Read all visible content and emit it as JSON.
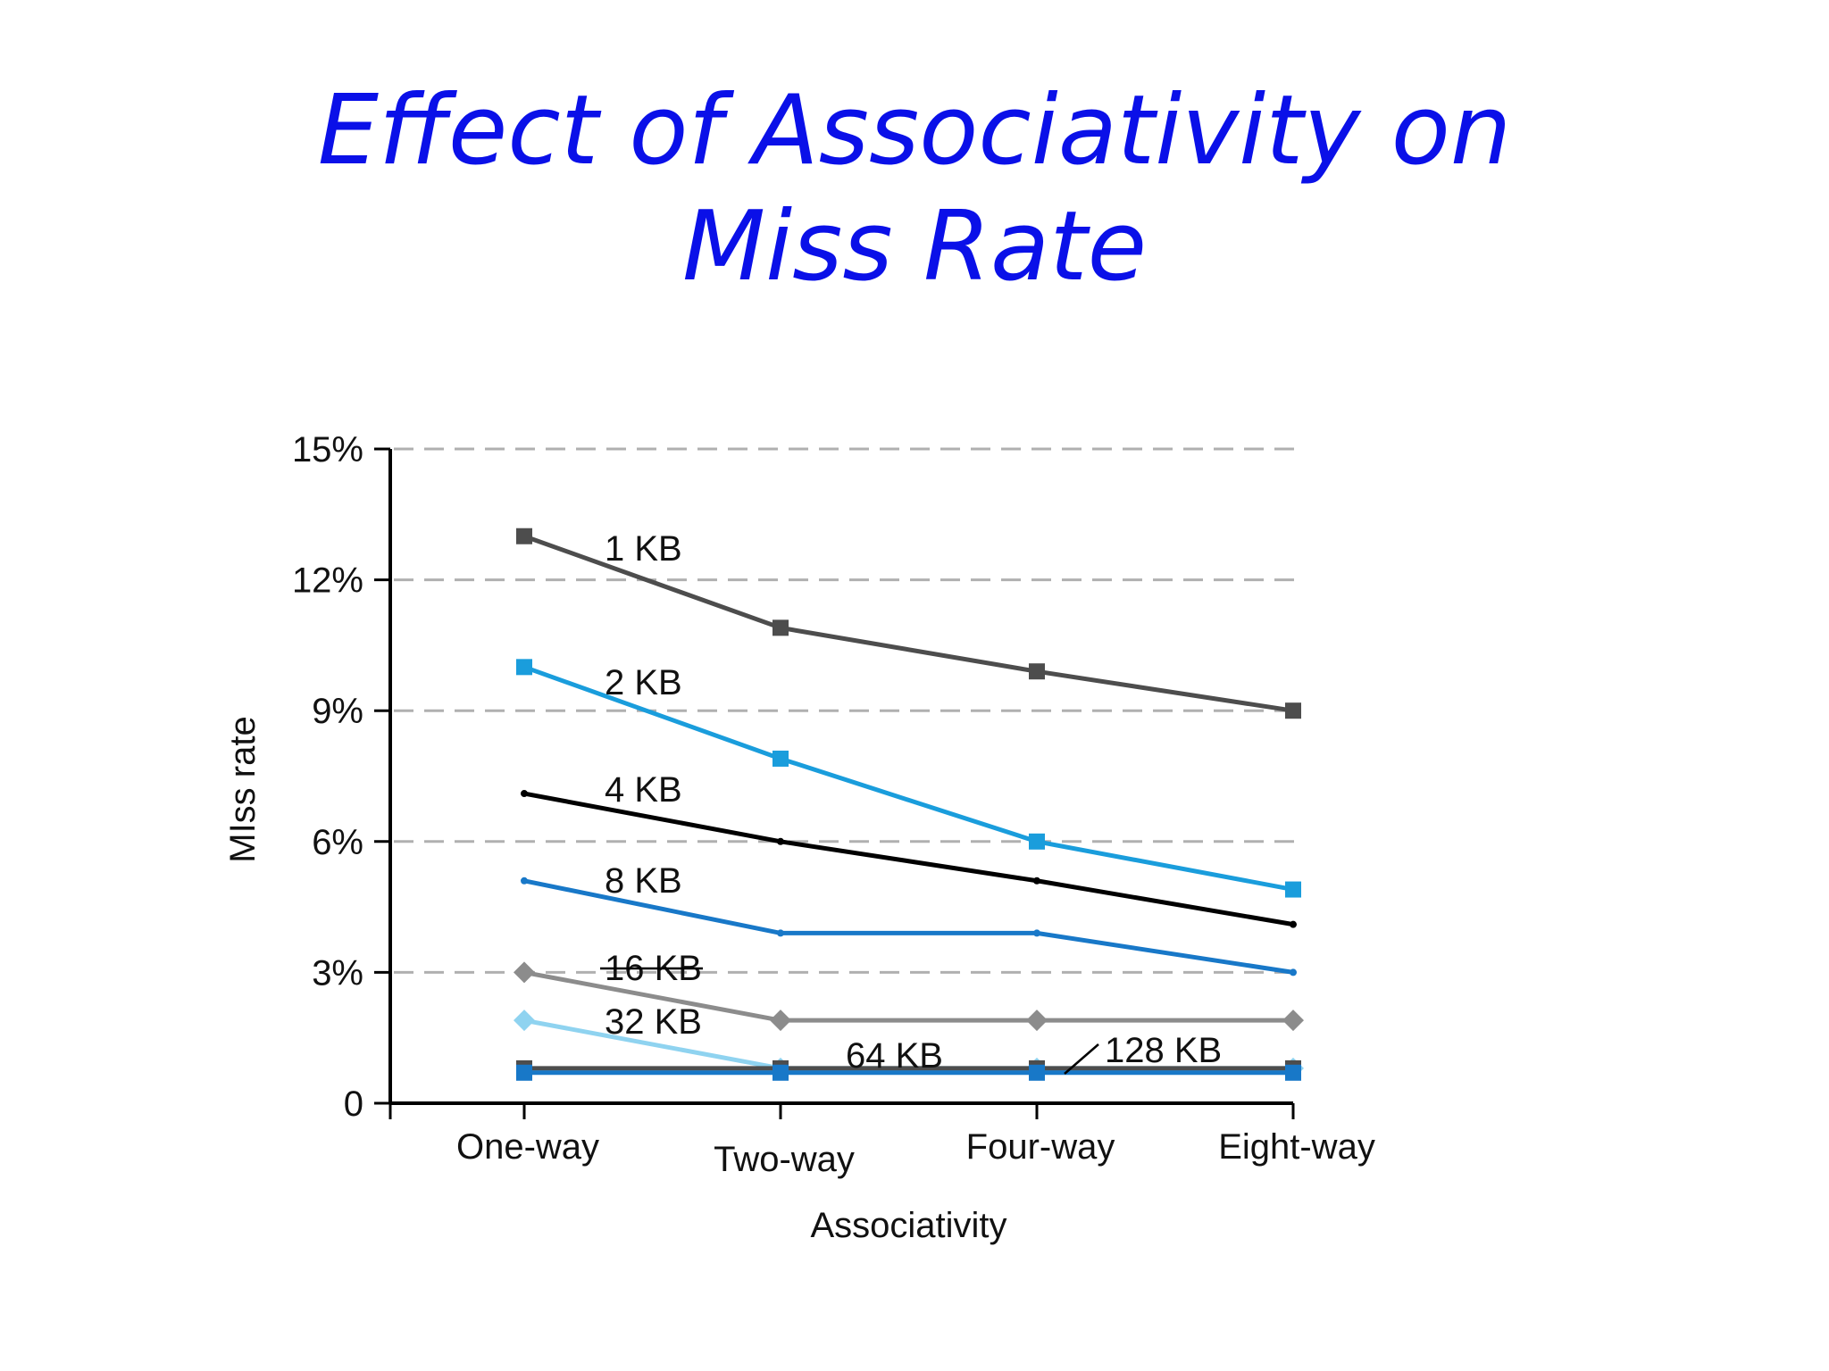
{
  "slide": {
    "title_line1": "Effect of Associativity on",
    "title_line2": "Miss Rate"
  },
  "chart_data": {
    "type": "line",
    "categories": [
      "One-way",
      "Two-way",
      "Four-way",
      "Eight-way"
    ],
    "xlabel": "Associativity",
    "ylabel": "MIss rate",
    "ylim": [
      0,
      15
    ],
    "yticks": [
      0,
      3,
      6,
      9,
      12,
      15
    ],
    "ytick_labels": [
      "0",
      "3%",
      "6%",
      "9%",
      "12%",
      "15%"
    ],
    "grid": "horizontal dashed",
    "series": [
      {
        "name": "1 KB",
        "values": [
          13.0,
          10.9,
          9.9,
          9.0
        ],
        "color": "#4d4d4d",
        "marker": "square"
      },
      {
        "name": "2 KB",
        "values": [
          10.0,
          7.9,
          6.0,
          4.9
        ],
        "color": "#1a9ddc",
        "marker": "square"
      },
      {
        "name": "4 KB",
        "values": [
          7.1,
          6.0,
          5.1,
          4.1
        ],
        "color": "#000000",
        "marker": "dot"
      },
      {
        "name": "8 KB",
        "values": [
          5.1,
          3.9,
          3.9,
          3.0
        ],
        "color": "#1878c8",
        "marker": "dot"
      },
      {
        "name": "16 KB",
        "values": [
          3.0,
          1.9,
          1.9,
          1.9
        ],
        "color": "#8c8c8c",
        "marker": "diamond"
      },
      {
        "name": "32 KB",
        "values": [
          1.9,
          0.8,
          0.8,
          0.8
        ],
        "color": "#8fd3f0",
        "marker": "diamond"
      },
      {
        "name": "64 KB",
        "values": [
          0.8,
          0.8,
          0.8,
          0.8
        ],
        "color": "#4d4d4d",
        "marker": "square"
      },
      {
        "name": "128 KB",
        "values": [
          0.7,
          0.7,
          0.7,
          0.7
        ],
        "color": "#1878c8",
        "marker": "square"
      }
    ]
  }
}
